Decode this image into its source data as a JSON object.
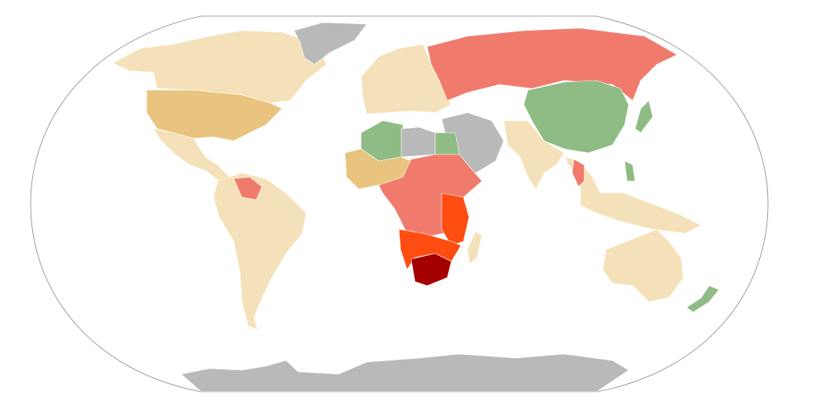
{
  "map": {
    "projection": "robinson",
    "background": "#ffffff",
    "outline_color": "#888888",
    "colors": {
      "no_data": "#b9b9b9",
      "lowest": "#8fbc84",
      "low": "#f5e1b9",
      "low_mid": "#e9c47e",
      "mid": "#f07b6c",
      "high": "#ff4d12",
      "highest": "#a50000"
    },
    "regions": [
      {
        "region": "canada-alaska",
        "category": "low"
      },
      {
        "region": "usa",
        "category": "low_mid"
      },
      {
        "region": "greenland",
        "category": "no_data"
      },
      {
        "region": "mexico-central-america",
        "category": "low"
      },
      {
        "region": "south-america",
        "category": "low"
      },
      {
        "region": "europe",
        "category": "low"
      },
      {
        "region": "russia",
        "category": "mid"
      },
      {
        "region": "china",
        "category": "lowest"
      },
      {
        "region": "middle-east",
        "category": "no_data"
      },
      {
        "region": "south-asia",
        "category": "low"
      },
      {
        "region": "algeria",
        "category": "lowest"
      },
      {
        "region": "libya",
        "category": "no_data"
      },
      {
        "region": "egypt",
        "category": "lowest"
      },
      {
        "region": "west-africa",
        "category": "low_mid"
      },
      {
        "region": "central-africa",
        "category": "mid"
      },
      {
        "region": "east-africa",
        "category": "high"
      },
      {
        "region": "southern-africa",
        "category": "high"
      },
      {
        "region": "south-africa",
        "category": "highest"
      },
      {
        "region": "madagascar",
        "category": "low"
      },
      {
        "region": "southeast-asia",
        "category": "low"
      },
      {
        "region": "australia",
        "category": "low"
      },
      {
        "region": "new-zealand",
        "category": "lowest"
      },
      {
        "region": "antarctica",
        "category": "no_data"
      }
    ]
  }
}
